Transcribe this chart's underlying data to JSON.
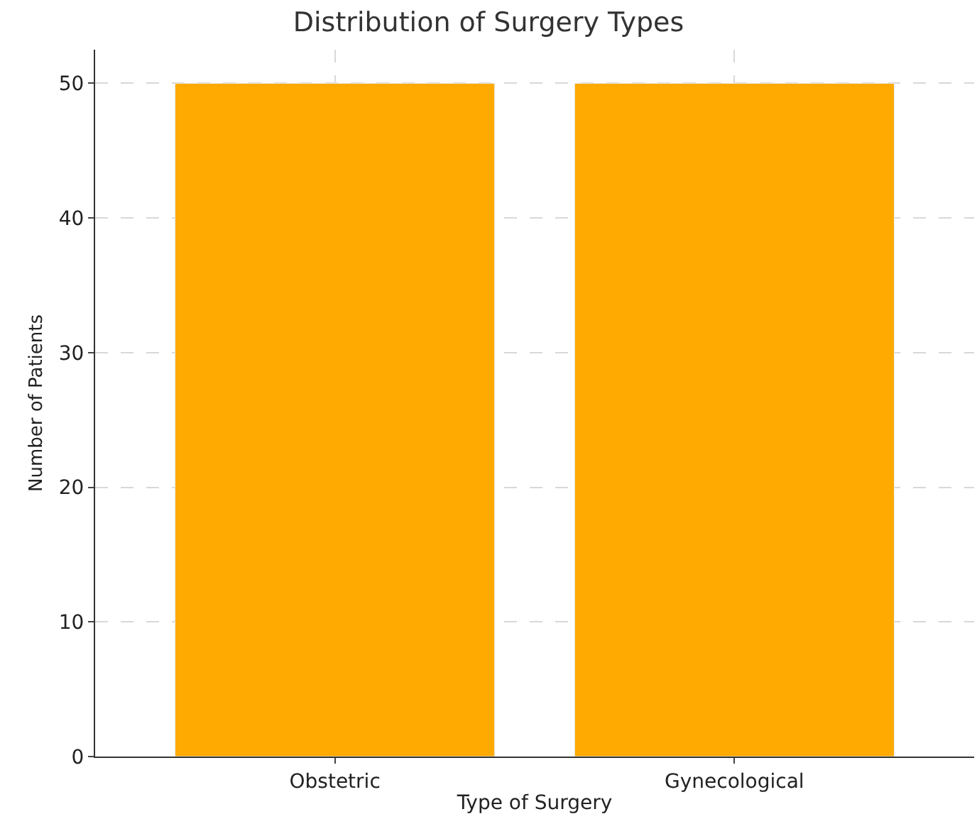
{
  "chart_data": {
    "type": "bar",
    "title": "Distribution of Surgery Types",
    "xlabel": "Type of Surgery",
    "ylabel": "Number of Patients",
    "categories": [
      "Obstetric",
      "Gynecological"
    ],
    "values": [
      50,
      50
    ],
    "color": "#ffaa00",
    "ylim": [
      0,
      52.5
    ],
    "yticks": [
      0,
      10,
      20,
      30,
      40,
      50
    ],
    "grid": true
  }
}
